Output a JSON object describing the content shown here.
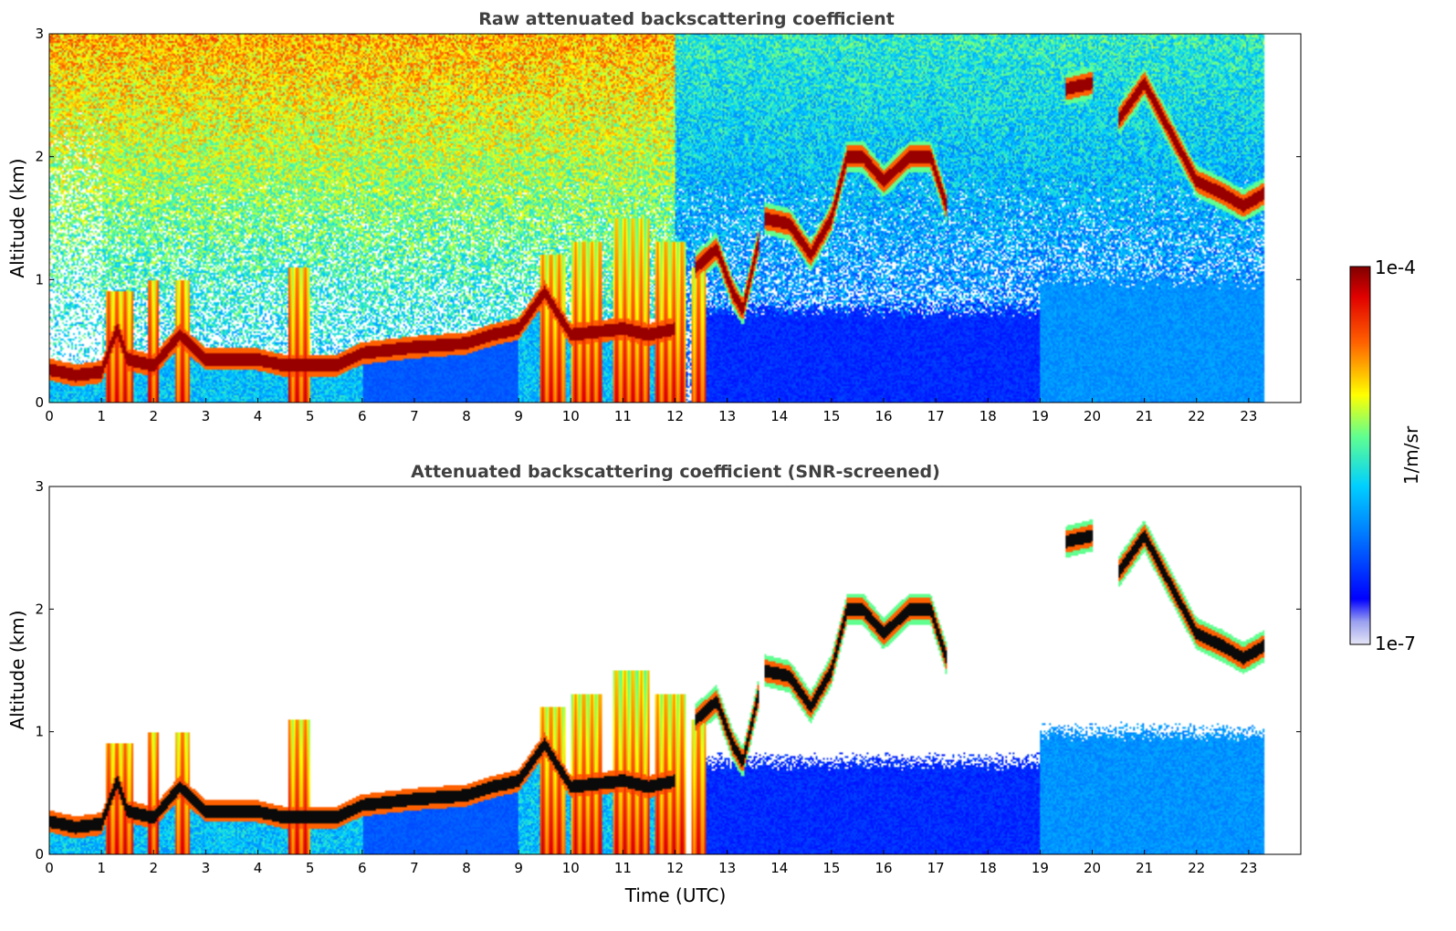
{
  "chart_data": [
    {
      "type": "heatmap",
      "title": "Raw attenuated backscattering coefficient",
      "xlabel": "",
      "ylabel": "Altitude (km)",
      "xlim": [
        0,
        24
      ],
      "ylim": [
        0,
        3
      ],
      "xticks": [
        "0",
        "1",
        "2",
        "3",
        "4",
        "5",
        "6",
        "7",
        "8",
        "9",
        "10",
        "11",
        "12",
        "13",
        "14",
        "15",
        "16",
        "17",
        "18",
        "19",
        "20",
        "21",
        "22",
        "23"
      ],
      "yticks": [
        "0",
        "1",
        "2",
        "3"
      ],
      "data_end_hour": 23.3,
      "noise_density": 1.0,
      "layers": [
        {
          "name": "boundary-layer top",
          "points": [
            [
              0,
              0.27
            ],
            [
              0.5,
              0.22
            ],
            [
              1,
              0.25
            ],
            [
              1.3,
              0.6
            ],
            [
              1.5,
              0.35
            ],
            [
              2,
              0.3
            ],
            [
              2.5,
              0.55
            ],
            [
              3,
              0.35
            ],
            [
              4,
              0.35
            ],
            [
              4.5,
              0.3
            ],
            [
              5,
              0.3
            ],
            [
              5.5,
              0.3
            ],
            [
              6,
              0.4
            ],
            [
              7,
              0.45
            ],
            [
              8,
              0.48
            ],
            [
              8.5,
              0.55
            ],
            [
              9,
              0.6
            ],
            [
              9.5,
              0.9
            ],
            [
              10,
              0.55
            ],
            [
              11,
              0.6
            ],
            [
              11.5,
              0.55
            ],
            [
              12,
              0.6
            ]
          ]
        },
        {
          "name": "cloud 13-14h",
          "points": [
            [
              12.4,
              1.1
            ],
            [
              12.8,
              1.25
            ],
            [
              13.1,
              0.9
            ],
            [
              13.3,
              0.75
            ],
            [
              13.6,
              1.3
            ]
          ]
        },
        {
          "name": "cloud 14-17h",
          "points": [
            [
              13.7,
              1.5
            ],
            [
              14.2,
              1.45
            ],
            [
              14.6,
              1.2
            ],
            [
              15,
              1.5
            ],
            [
              15.3,
              2.0
            ],
            [
              15.6,
              2.0
            ],
            [
              16,
              1.8
            ],
            [
              16.5,
              2.0
            ],
            [
              16.9,
              2.0
            ],
            [
              17.2,
              1.6
            ]
          ]
        },
        {
          "name": "cloud 19.5-20h",
          "points": [
            [
              19.5,
              2.55
            ],
            [
              20,
              2.6
            ]
          ]
        },
        {
          "name": "cloud 20.5-23.3h",
          "points": [
            [
              20.5,
              2.3
            ],
            [
              21,
              2.6
            ],
            [
              21.5,
              2.2
            ],
            [
              22,
              1.8
            ],
            [
              22.5,
              1.7
            ],
            [
              22.9,
              1.6
            ],
            [
              23.3,
              1.7
            ]
          ]
        }
      ],
      "precipitation": [
        [
          1.1,
          1.6,
          0.9
        ],
        [
          1.9,
          2.1,
          1.0
        ],
        [
          2.4,
          2.7,
          1.0
        ],
        [
          4.6,
          5.0,
          1.1
        ],
        [
          9.4,
          9.9,
          1.2
        ],
        [
          10.0,
          10.6,
          1.3
        ],
        [
          10.8,
          11.5,
          1.5
        ],
        [
          11.6,
          12.2,
          1.3
        ],
        [
          12.3,
          12.6,
          1.1
        ]
      ],
      "colorbar": {
        "label": "1/m/sr",
        "min_label": "1e-7",
        "max_label": "1e-4",
        "scale": "log"
      }
    },
    {
      "type": "heatmap",
      "title": "Attenuated backscattering coefficient (SNR-screened)",
      "xlabel": "Time (UTC)",
      "ylabel": "Altitude (km)",
      "xlim": [
        0,
        24
      ],
      "ylim": [
        0,
        3
      ],
      "xticks": [
        "0",
        "1",
        "2",
        "3",
        "4",
        "5",
        "6",
        "7",
        "8",
        "9",
        "10",
        "11",
        "12",
        "13",
        "14",
        "15",
        "16",
        "17",
        "18",
        "19",
        "20",
        "21",
        "22",
        "23"
      ],
      "yticks": [
        "0",
        "1",
        "2",
        "3"
      ],
      "data_end_hour": 23.3,
      "noise_density": 0.0,
      "screened": true
    }
  ],
  "colorbar": {
    "label": "1/m/sr",
    "top_label": "1e-4",
    "bottom_label": "1e-7",
    "colormap": "jet"
  }
}
